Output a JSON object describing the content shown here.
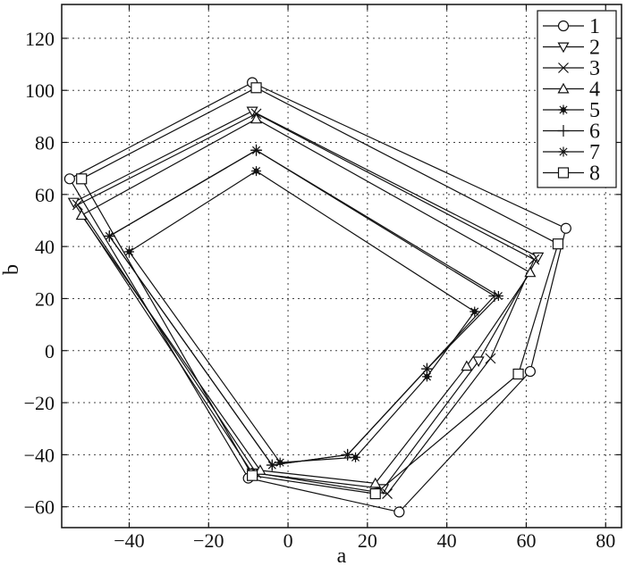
{
  "chart_data": {
    "type": "line",
    "title": "",
    "xlabel": "a",
    "ylabel": "b",
    "xlim": [
      -57,
      84
    ],
    "ylim": [
      -68,
      133
    ],
    "xticks": [
      -40,
      -20,
      0,
      20,
      40,
      60,
      80
    ],
    "yticks": [
      -60,
      -40,
      -20,
      0,
      20,
      40,
      60,
      80,
      100,
      120
    ],
    "grid": true,
    "legend": "top-right",
    "series": [
      {
        "name": "1",
        "marker": "circle",
        "points": [
          [
            -55,
            66
          ],
          [
            -9,
            103
          ],
          [
            70,
            47
          ],
          [
            61,
            -8
          ],
          [
            28,
            -62
          ],
          [
            -10,
            -49
          ],
          [
            -55,
            66
          ]
        ]
      },
      {
        "name": "2",
        "marker": "triangle-down",
        "points": [
          [
            -54,
            57
          ],
          [
            -9,
            92
          ],
          [
            63,
            36
          ],
          [
            48,
            -4
          ],
          [
            24,
            -53
          ],
          [
            -9,
            -47
          ],
          [
            -54,
            57
          ]
        ]
      },
      {
        "name": "3",
        "marker": "x",
        "points": [
          [
            -53,
            56
          ],
          [
            -8,
            91
          ],
          [
            62,
            35
          ],
          [
            51,
            -3
          ],
          [
            25,
            -55
          ],
          [
            -8,
            -47
          ],
          [
            -53,
            56
          ]
        ]
      },
      {
        "name": "4",
        "marker": "triangle-up",
        "points": [
          [
            -52,
            52
          ],
          [
            -8,
            89
          ],
          [
            61,
            30
          ],
          [
            45,
            -6
          ],
          [
            22,
            -51
          ],
          [
            -7,
            -46
          ],
          [
            -52,
            52
          ]
        ]
      },
      {
        "name": "5",
        "marker": "star-filled",
        "points": [
          [
            -40,
            38
          ],
          [
            -8,
            69
          ],
          [
            47,
            15
          ],
          [
            35,
            -10
          ],
          [
            17,
            -41
          ],
          [
            -2,
            -43
          ],
          [
            -40,
            38
          ]
        ]
      },
      {
        "name": "6",
        "marker": "plus",
        "points": [
          [
            -45,
            44
          ],
          [
            -8,
            77
          ],
          [
            52,
            21
          ],
          [
            35,
            -7
          ],
          [
            15,
            -40
          ],
          [
            -4,
            -44
          ],
          [
            -45,
            44
          ]
        ]
      },
      {
        "name": "7",
        "marker": "asterisk",
        "points": [
          [
            -45,
            44
          ],
          [
            -8,
            77
          ],
          [
            53,
            21
          ],
          [
            35,
            -7
          ],
          [
            15,
            -40
          ],
          [
            -4,
            -44
          ],
          [
            -45,
            44
          ]
        ]
      },
      {
        "name": "8",
        "marker": "square",
        "points": [
          [
            -52,
            66
          ],
          [
            -8,
            101
          ],
          [
            68,
            41
          ],
          [
            58,
            -9
          ],
          [
            22,
            -55
          ],
          [
            -9,
            -48
          ],
          [
            -52,
            66
          ]
        ]
      }
    ]
  }
}
